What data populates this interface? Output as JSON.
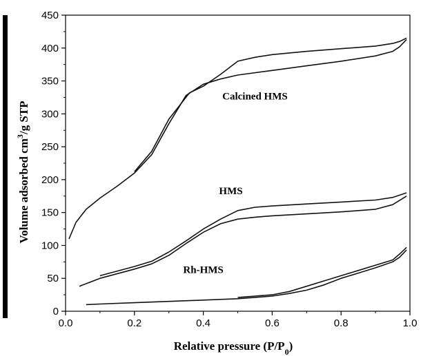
{
  "chart_data": {
    "type": "line",
    "xlabel": "Relative pressure (P/P",
    "xlabel_sub": "0",
    "xlabel_end": ")",
    "ylabel": "Volume adsorbed cm",
    "ylabel_sup": "3",
    "ylabel_end": "/g STP",
    "xlim": [
      0.0,
      1.0
    ],
    "ylim": [
      0,
      450
    ],
    "xticks": [
      "0.0",
      "0.2",
      "0.4",
      "0.6",
      "0.8",
      "1.0"
    ],
    "yticks": [
      "0",
      "50",
      "100",
      "150",
      "200",
      "250",
      "300",
      "350",
      "400",
      "450"
    ],
    "annotations": [
      {
        "text": "Calcined HMS",
        "x": 0.55,
        "y": 322
      },
      {
        "text": "HMS",
        "x": 0.48,
        "y": 178
      },
      {
        "text": "Rh-HMS",
        "x": 0.4,
        "y": 58
      }
    ],
    "series": [
      {
        "id": "calcined-adsorption",
        "x": [
          0.01,
          0.03,
          0.06,
          0.1,
          0.15,
          0.2,
          0.25,
          0.3,
          0.35,
          0.4,
          0.45,
          0.5,
          0.6,
          0.7,
          0.8,
          0.9,
          0.95,
          0.97,
          0.99
        ],
        "y": [
          110,
          135,
          155,
          172,
          190,
          210,
          238,
          285,
          328,
          345,
          353,
          359,
          366,
          373,
          380,
          388,
          395,
          402,
          413
        ]
      },
      {
        "id": "calcined-desorption",
        "x": [
          0.99,
          0.97,
          0.95,
          0.9,
          0.8,
          0.7,
          0.6,
          0.55,
          0.5,
          0.45,
          0.4,
          0.36,
          0.3,
          0.25,
          0.2
        ],
        "y": [
          415,
          410,
          407,
          403,
          399,
          395,
          390,
          386,
          380,
          360,
          342,
          332,
          292,
          243,
          212
        ]
      },
      {
        "id": "hms-adsorption",
        "x": [
          0.04,
          0.1,
          0.2,
          0.25,
          0.3,
          0.35,
          0.4,
          0.45,
          0.5,
          0.55,
          0.6,
          0.7,
          0.8,
          0.9,
          0.95,
          0.99
        ],
        "y": [
          38,
          50,
          64,
          72,
          85,
          103,
          120,
          133,
          140,
          143,
          145,
          148,
          151,
          155,
          162,
          175
        ]
      },
      {
        "id": "hms-desorption",
        "x": [
          0.99,
          0.95,
          0.9,
          0.8,
          0.7,
          0.6,
          0.55,
          0.5,
          0.45,
          0.4,
          0.35,
          0.3,
          0.25,
          0.2,
          0.1
        ],
        "y": [
          180,
          173,
          169,
          166,
          163,
          160,
          158,
          153,
          140,
          125,
          107,
          90,
          76,
          68,
          54
        ]
      },
      {
        "id": "rh-hms-adsorption",
        "x": [
          0.06,
          0.1,
          0.2,
          0.3,
          0.4,
          0.5,
          0.55,
          0.6,
          0.65,
          0.7,
          0.75,
          0.8,
          0.85,
          0.9,
          0.95,
          0.97,
          0.99
        ],
        "y": [
          10,
          11,
          13,
          15,
          17,
          19,
          21,
          23,
          27,
          32,
          40,
          50,
          58,
          66,
          75,
          82,
          93
        ]
      },
      {
        "id": "rh-hms-desorption",
        "x": [
          0.99,
          0.97,
          0.95,
          0.9,
          0.85,
          0.8,
          0.75,
          0.7,
          0.65,
          0.6,
          0.55,
          0.5
        ],
        "y": [
          97,
          87,
          78,
          70,
          62,
          54,
          46,
          38,
          30,
          25,
          23,
          21
        ]
      }
    ]
  }
}
